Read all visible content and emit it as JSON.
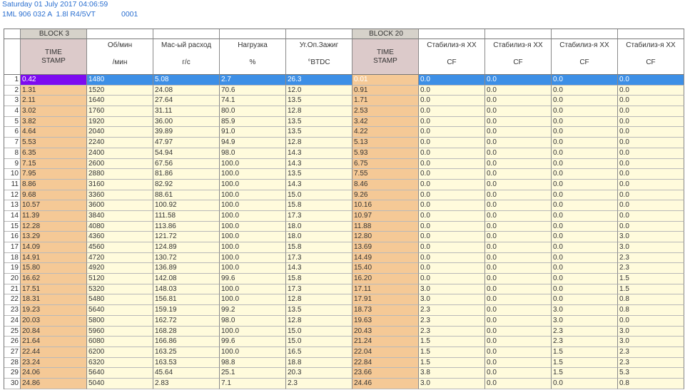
{
  "header": {
    "date": "Saturday 01 July 2017 04:06:59",
    "vehicle": "1ML 906 032 A  1.8l R4/5VT",
    "code": "0001"
  },
  "table": {
    "blocks": [
      "BLOCK 3",
      "BLOCK 20"
    ],
    "columns": [
      {
        "title": "TIME STAMP"
      },
      {
        "title": "Об/мин",
        "unit": "/мин"
      },
      {
        "title": "Мас-ый расход",
        "unit": "г/с"
      },
      {
        "title": "Нагрузка",
        "unit": "%"
      },
      {
        "title": "Уг.Оп.Зажиг",
        "unit": "°BTDC"
      },
      {
        "title": "TIME STAMP"
      },
      {
        "title": "Стабилиз-я ХХ",
        "unit": "CF"
      },
      {
        "title": "Стабилиз-я ХХ",
        "unit": "CF"
      },
      {
        "title": "Стабилиз-я ХХ",
        "unit": "CF"
      },
      {
        "title": "Стабилиз-я ХХ",
        "unit": "CF"
      }
    ],
    "rows": [
      {
        "index": 1,
        "cells": [
          "0.42",
          "1480",
          "5.08",
          "2.7",
          "26.3",
          "0.01",
          "0.0",
          "0.0",
          "0.0",
          "0.0"
        ]
      },
      {
        "index": 2,
        "cells": [
          "1.31",
          "1520",
          "24.08",
          "70.6",
          "12.0",
          "0.91",
          "0.0",
          "0.0",
          "0.0",
          "0.0"
        ]
      },
      {
        "index": 3,
        "cells": [
          "2.11",
          "1640",
          "27.64",
          "74.1",
          "13.5",
          "1.71",
          "0.0",
          "0.0",
          "0.0",
          "0.0"
        ]
      },
      {
        "index": 4,
        "cells": [
          "3.02",
          "1760",
          "31.11",
          "80.0",
          "12.8",
          "2.53",
          "0.0",
          "0.0",
          "0.0",
          "0.0"
        ]
      },
      {
        "index": 5,
        "cells": [
          "3.82",
          "1920",
          "36.00",
          "85.9",
          "13.5",
          "3.42",
          "0.0",
          "0.0",
          "0.0",
          "0.0"
        ]
      },
      {
        "index": 6,
        "cells": [
          "4.64",
          "2040",
          "39.89",
          "91.0",
          "13.5",
          "4.22",
          "0.0",
          "0.0",
          "0.0",
          "0.0"
        ]
      },
      {
        "index": 7,
        "cells": [
          "5.53",
          "2240",
          "47.97",
          "94.9",
          "12.8",
          "5.13",
          "0.0",
          "0.0",
          "0.0",
          "0.0"
        ]
      },
      {
        "index": 8,
        "cells": [
          "6.35",
          "2400",
          "54.94",
          "98.0",
          "14.3",
          "5.93",
          "0.0",
          "0.0",
          "0.0",
          "0.0"
        ]
      },
      {
        "index": 9,
        "cells": [
          "7.15",
          "2600",
          "67.56",
          "100.0",
          "14.3",
          "6.75",
          "0.0",
          "0.0",
          "0.0",
          "0.0"
        ]
      },
      {
        "index": 10,
        "cells": [
          "7.95",
          "2880",
          "81.86",
          "100.0",
          "13.5",
          "7.55",
          "0.0",
          "0.0",
          "0.0",
          "0.0"
        ]
      },
      {
        "index": 11,
        "cells": [
          "8.86",
          "3160",
          "82.92",
          "100.0",
          "14.3",
          "8.46",
          "0.0",
          "0.0",
          "0.0",
          "0.0"
        ]
      },
      {
        "index": 12,
        "cells": [
          "9.68",
          "3360",
          "88.61",
          "100.0",
          "15.0",
          "9.26",
          "0.0",
          "0.0",
          "0.0",
          "0.0"
        ]
      },
      {
        "index": 13,
        "cells": [
          "10.57",
          "3600",
          "100.92",
          "100.0",
          "15.8",
          "10.16",
          "0.0",
          "0.0",
          "0.0",
          "0.0"
        ]
      },
      {
        "index": 14,
        "cells": [
          "11.39",
          "3840",
          "111.58",
          "100.0",
          "17.3",
          "10.97",
          "0.0",
          "0.0",
          "0.0",
          "0.0"
        ]
      },
      {
        "index": 15,
        "cells": [
          "12.28",
          "4080",
          "113.86",
          "100.0",
          "18.0",
          "11.88",
          "0.0",
          "0.0",
          "0.0",
          "0.0"
        ]
      },
      {
        "index": 16,
        "cells": [
          "13.29",
          "4360",
          "121.72",
          "100.0",
          "18.0",
          "12.80",
          "0.0",
          "0.0",
          "0.0",
          "3.0"
        ]
      },
      {
        "index": 17,
        "cells": [
          "14.09",
          "4560",
          "124.89",
          "100.0",
          "15.8",
          "13.69",
          "0.0",
          "0.0",
          "0.0",
          "3.0"
        ]
      },
      {
        "index": 18,
        "cells": [
          "14.91",
          "4720",
          "130.72",
          "100.0",
          "17.3",
          "14.49",
          "0.0",
          "0.0",
          "0.0",
          "2.3"
        ]
      },
      {
        "index": 19,
        "cells": [
          "15.80",
          "4920",
          "136.89",
          "100.0",
          "14.3",
          "15.40",
          "0.0",
          "0.0",
          "0.0",
          "2.3"
        ]
      },
      {
        "index": 20,
        "cells": [
          "16.62",
          "5120",
          "142.08",
          "99.6",
          "15.8",
          "16.20",
          "0.0",
          "0.0",
          "0.0",
          "1.5"
        ]
      },
      {
        "index": 21,
        "cells": [
          "17.51",
          "5320",
          "148.03",
          "100.0",
          "17.3",
          "17.11",
          "3.0",
          "0.0",
          "0.0",
          "1.5"
        ]
      },
      {
        "index": 22,
        "cells": [
          "18.31",
          "5480",
          "156.81",
          "100.0",
          "12.8",
          "17.91",
          "3.0",
          "0.0",
          "0.0",
          "0.8"
        ]
      },
      {
        "index": 23,
        "cells": [
          "19.23",
          "5640",
          "159.19",
          "99.2",
          "13.5",
          "18.73",
          "2.3",
          "0.0",
          "3.0",
          "0.8"
        ]
      },
      {
        "index": 24,
        "cells": [
          "20.03",
          "5800",
          "162.72",
          "98.0",
          "12.8",
          "19.63",
          "2.3",
          "0.0",
          "3.0",
          "0.0"
        ]
      },
      {
        "index": 25,
        "cells": [
          "20.84",
          "5960",
          "168.28",
          "100.0",
          "15.0",
          "20.43",
          "2.3",
          "0.0",
          "2.3",
          "3.0"
        ]
      },
      {
        "index": 26,
        "cells": [
          "21.64",
          "6080",
          "166.86",
          "99.6",
          "15.0",
          "21.24",
          "1.5",
          "0.0",
          "2.3",
          "3.0"
        ]
      },
      {
        "index": 27,
        "cells": [
          "22.44",
          "6200",
          "163.25",
          "100.0",
          "16.5",
          "22.04",
          "1.5",
          "0.0",
          "1.5",
          "2.3"
        ]
      },
      {
        "index": 28,
        "cells": [
          "23.24",
          "6320",
          "163.53",
          "98.8",
          "18.8",
          "22.84",
          "1.5",
          "0.0",
          "1.5",
          "2.3"
        ]
      },
      {
        "index": 29,
        "cells": [
          "24.06",
          "5640",
          "45.64",
          "25.1",
          "20.3",
          "23.66",
          "3.8",
          "0.0",
          "1.5",
          "5.3"
        ]
      },
      {
        "index": 30,
        "cells": [
          "24.86",
          "5040",
          "2.83",
          "7.1",
          "2.3",
          "24.46",
          "3.0",
          "0.0",
          "0.0",
          "0.8"
        ]
      }
    ]
  }
}
